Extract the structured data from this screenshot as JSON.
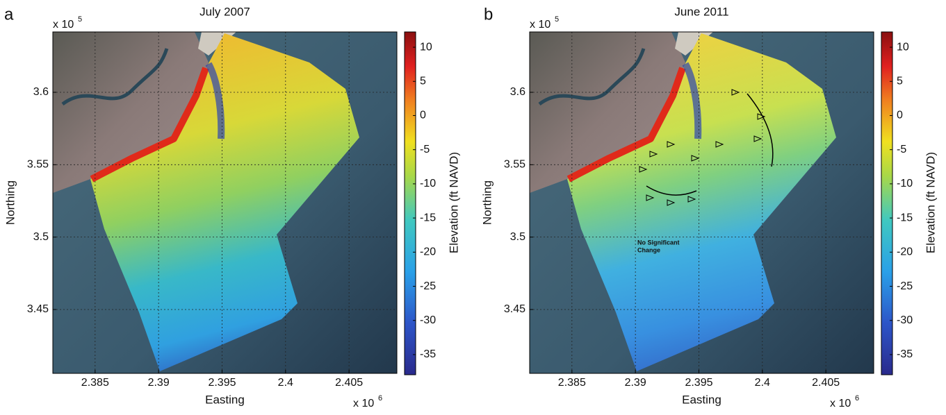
{
  "panels": [
    {
      "letter": "a",
      "title": "July 2007",
      "xlabel": "Easting",
      "ylabel": "Northing",
      "x_exponent": {
        "base": "x 10",
        "power": "6"
      },
      "y_exponent": {
        "base": "x 10",
        "power": "5"
      },
      "xlim": [
        2.38167,
        2.40877
      ],
      "xticks": [
        2.385,
        2.39,
        2.395,
        2.4,
        2.405
      ],
      "ylim": [
        3.4059,
        3.6417
      ],
      "yticks": [
        3.45,
        3.5,
        3.55,
        3.6
      ],
      "colorbar": {
        "label": "Elevation (ft NAVD)",
        "lim": [
          -37.95,
          12.24
        ],
        "ticks": [
          10,
          5,
          0,
          -5,
          -10,
          -15,
          -20,
          -25,
          -30,
          -35
        ]
      }
    },
    {
      "letter": "b",
      "title": "June 2011",
      "xlabel": "Easting",
      "ylabel": "Northing",
      "x_exponent": {
        "base": "x 10",
        "power": "6"
      },
      "y_exponent": {
        "base": "x 10",
        "power": "5"
      },
      "xlim": [
        2.38167,
        2.40877
      ],
      "xticks": [
        2.385,
        2.39,
        2.395,
        2.4,
        2.405
      ],
      "ylim": [
        3.4059,
        3.6417
      ],
      "yticks": [
        3.45,
        3.5,
        3.55,
        3.6
      ],
      "colorbar": {
        "label": "Elevation (ft NAVD)",
        "lim": [
          -37.95,
          12.24
        ],
        "ticks": [
          10,
          5,
          0,
          -5,
          -10,
          -15,
          -20,
          -25,
          -30,
          -35
        ]
      },
      "annotation": [
        "No Significant",
        "Change"
      ]
    }
  ]
}
